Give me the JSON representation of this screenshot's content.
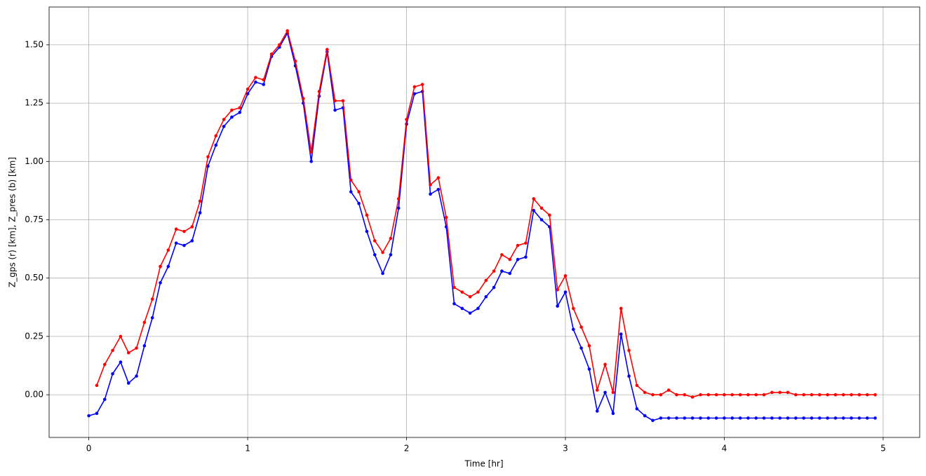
{
  "chart_data": {
    "type": "line",
    "x_label": "Time [hr]",
    "y_label": "Z_gps (r) [km], Z_pres (b) [km]",
    "x": [
      0,
      0.05,
      0.1,
      0.15,
      0.2,
      0.25,
      0.3,
      0.35,
      0.4,
      0.45,
      0.5,
      0.55,
      0.6,
      0.65,
      0.7,
      0.75,
      0.8,
      0.85,
      0.9,
      0.95,
      1,
      1.05,
      1.1,
      1.15,
      1.2,
      1.25,
      1.3,
      1.35,
      1.4,
      1.45,
      1.5,
      1.55,
      1.6,
      1.65,
      1.7,
      1.75,
      1.8,
      1.85,
      1.9,
      1.95,
      2,
      2.05,
      2.1,
      2.15,
      2.2,
      2.25,
      2.3,
      2.35,
      2.4,
      2.45,
      2.5,
      2.55,
      2.6,
      2.65,
      2.7,
      2.75,
      2.8,
      2.85,
      2.9,
      2.95,
      3,
      3.05,
      3.1,
      3.15,
      3.2,
      3.25,
      3.3,
      3.35,
      3.4,
      3.45,
      3.5,
      3.55,
      3.6,
      3.65,
      3.7,
      3.75,
      3.8,
      3.85,
      3.9,
      3.95,
      4,
      4.05,
      4.1,
      4.15,
      4.2,
      4.25,
      4.3,
      4.35,
      4.4,
      4.45,
      4.5,
      4.55,
      4.6,
      4.65,
      4.7,
      4.75,
      4.8,
      4.85,
      4.9,
      4.95
    ],
    "series": [
      {
        "color": "#0000ff",
        "values": [
          -0.09,
          -0.08,
          -0.02,
          0.09,
          0.14,
          0.05,
          0.08,
          0.21,
          0.33,
          0.48,
          0.55,
          0.65,
          0.64,
          0.66,
          0.78,
          0.98,
          1.07,
          1.15,
          1.19,
          1.21,
          1.29,
          1.34,
          1.33,
          1.45,
          1.49,
          1.55,
          1.41,
          1.25,
          1.0,
          1.28,
          1.47,
          1.22,
          1.23,
          0.87,
          0.82,
          0.7,
          0.6,
          0.52,
          0.6,
          0.8,
          1.16,
          1.29,
          1.3,
          0.86,
          0.88,
          0.72,
          0.39,
          0.37,
          0.35,
          0.37,
          0.42,
          0.46,
          0.53,
          0.52,
          0.58,
          0.59,
          0.79,
          0.75,
          0.72,
          0.38,
          0.44,
          0.28,
          0.2,
          0.11,
          -0.07,
          0.01,
          -0.08,
          0.26,
          0.08,
          -0.06,
          -0.09,
          -0.11,
          -0.1,
          -0.1,
          -0.1,
          -0.1,
          -0.1,
          -0.1,
          -0.1,
          -0.1,
          -0.1,
          -0.1,
          -0.1,
          -0.1,
          -0.1,
          -0.1,
          -0.1,
          -0.1,
          -0.1,
          -0.1,
          -0.1,
          -0.1,
          -0.1,
          -0.1,
          -0.1,
          -0.1,
          -0.1,
          -0.1,
          -0.1,
          -0.1
        ]
      },
      {
        "color": "#ff0000",
        "values": [
          null,
          0.04,
          0.13,
          0.19,
          0.25,
          0.18,
          0.2,
          0.31,
          0.41,
          0.55,
          0.62,
          0.71,
          0.7,
          0.72,
          0.83,
          1.02,
          1.11,
          1.18,
          1.22,
          1.23,
          1.31,
          1.36,
          1.35,
          1.46,
          1.5,
          1.56,
          1.43,
          1.27,
          1.04,
          1.3,
          1.48,
          1.26,
          1.26,
          0.92,
          0.87,
          0.77,
          0.66,
          0.61,
          0.67,
          0.84,
          1.18,
          1.32,
          1.33,
          0.9,
          0.93,
          0.76,
          0.46,
          0.44,
          0.42,
          0.44,
          0.49,
          0.53,
          0.6,
          0.58,
          0.64,
          0.65,
          0.84,
          0.8,
          0.77,
          0.45,
          0.51,
          0.37,
          0.29,
          0.21,
          0.02,
          0.13,
          0.01,
          0.37,
          0.19,
          0.04,
          0.01,
          0.0,
          0.0,
          0.02,
          0.0,
          0.0,
          -0.01,
          0.0,
          0.0,
          0.0,
          0.0,
          0.0,
          0.0,
          0.0,
          0.0,
          0.0,
          0.01,
          0.01,
          0.01,
          0.0,
          0.0,
          0.0,
          0.0,
          0.0,
          0.0,
          0.0,
          0.0,
          0.0,
          0.0,
          0.0
        ]
      }
    ],
    "xlim": [
      -0.25,
      5.23
    ],
    "ylim": [
      -0.183,
      1.662
    ],
    "xticks": [
      0,
      1,
      2,
      3,
      4,
      5
    ],
    "yticks": [
      {
        "value": 0,
        "label": "0.00"
      },
      {
        "value": 0.25,
        "label": "0.25"
      },
      {
        "value": 0.5,
        "label": "0.50"
      },
      {
        "value": 0.75,
        "label": "0.75"
      },
      {
        "value": 1,
        "label": "1.00"
      },
      {
        "value": 1.25,
        "label": "1.25"
      },
      {
        "value": 1.5,
        "label": "1.50"
      }
    ],
    "grid": true
  }
}
